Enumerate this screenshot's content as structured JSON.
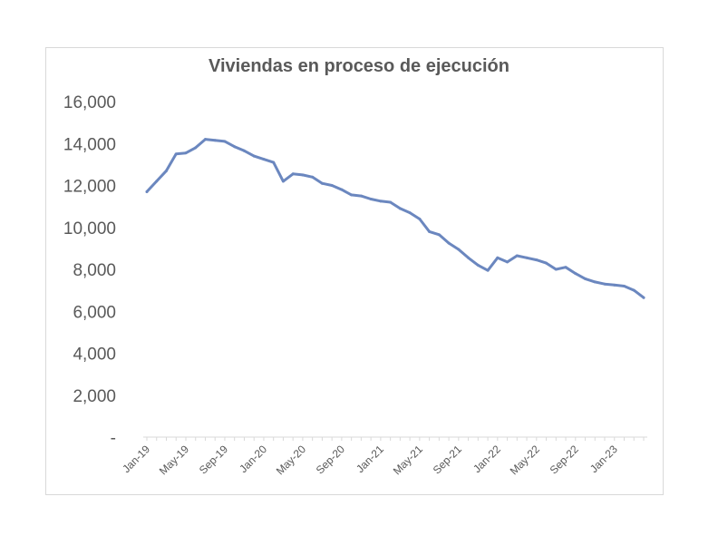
{
  "chart_data": {
    "type": "line",
    "title": "Viviendas en proceso de ejecución",
    "xlabel": "",
    "ylabel": "",
    "ylim": [
      0,
      16000
    ],
    "yticks": [
      0,
      2000,
      4000,
      6000,
      8000,
      10000,
      12000,
      14000,
      16000
    ],
    "ytick_labels": [
      "-",
      "2,000",
      "4,000",
      "6,000",
      "8,000",
      "10,000",
      "12,000",
      "14,000",
      "16,000"
    ],
    "xtick_labels": [
      "Jan-19",
      "May-19",
      "Sep-19",
      "Jan-20",
      "May-20",
      "Sep-20",
      "Jan-21",
      "May-21",
      "Sep-21",
      "Jan-22",
      "May-22",
      "Sep-22",
      "Jan-23"
    ],
    "grid": false,
    "legend": "none",
    "color": "#6b87bf",
    "categories": [
      "Jan-19",
      "Feb-19",
      "Mar-19",
      "Apr-19",
      "May-19",
      "Jun-19",
      "Jul-19",
      "Aug-19",
      "Sep-19",
      "Oct-19",
      "Nov-19",
      "Dec-19",
      "Jan-20",
      "Feb-20",
      "Mar-20",
      "Apr-20",
      "May-20",
      "Jun-20",
      "Jul-20",
      "Aug-20",
      "Sep-20",
      "Oct-20",
      "Nov-20",
      "Dec-20",
      "Jan-21",
      "Feb-21",
      "Mar-21",
      "Apr-21",
      "May-21",
      "Jun-21",
      "Jul-21",
      "Aug-21",
      "Sep-21",
      "Oct-21",
      "Nov-21",
      "Dec-21",
      "Jan-22",
      "Feb-22",
      "Mar-22",
      "Apr-22",
      "May-22",
      "Jun-22",
      "Jul-22",
      "Aug-22",
      "Sep-22",
      "Oct-22",
      "Nov-22",
      "Dec-22",
      "Jan-23",
      "Feb-23",
      "Mar-23",
      "Apr-23"
    ],
    "series": [
      {
        "values": [
          11700,
          12200,
          12700,
          13500,
          13550,
          13800,
          14200,
          14150,
          14100,
          13850,
          13650,
          13400,
          13250,
          13100,
          12200,
          12550,
          12500,
          12400,
          12100,
          12000,
          11800,
          11550,
          11500,
          11350,
          11250,
          11200,
          10900,
          10700,
          10400,
          9800,
          9650,
          9250,
          8950,
          8550,
          8200,
          7950,
          8550,
          8350,
          8650,
          8550,
          8450,
          8300,
          8000,
          8100,
          7800,
          7550,
          7400,
          7300,
          7250,
          7200,
          7000,
          6650
        ]
      }
    ]
  }
}
